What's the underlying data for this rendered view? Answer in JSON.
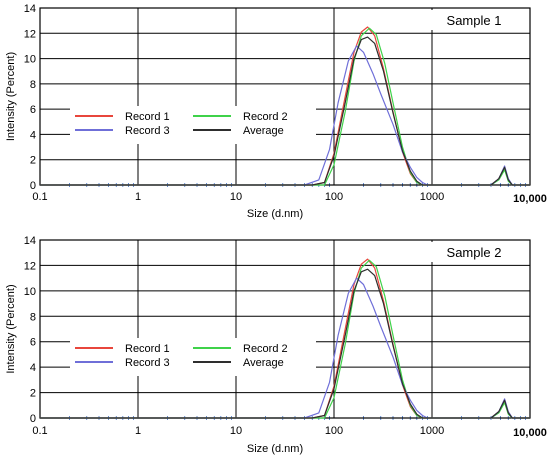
{
  "chart_data": [
    {
      "type": "line",
      "title": "Sample 1",
      "xlabel": "Size (d.nm)",
      "ylabel": "Intensity (Percent)",
      "xscale": "log",
      "xlim": [
        0.1,
        10000
      ],
      "ylim": [
        0,
        14
      ],
      "xticks": [
        0.1,
        1,
        10,
        100,
        1000,
        10000
      ],
      "xtick_labels": [
        "0.1",
        "1",
        "10",
        "100",
        "1000",
        "10,000"
      ],
      "yticks": [
        0,
        2,
        4,
        6,
        8,
        10,
        12,
        14
      ],
      "grid": true,
      "legend_position": "center-left",
      "series": [
        {
          "name": "Record 1",
          "color": "#e8463c",
          "x": [
            0.1,
            20,
            60,
            80,
            100,
            130,
            160,
            190,
            220,
            260,
            320,
            400,
            500,
            600,
            700,
            800,
            900,
            1000,
            4000,
            4800,
            5500,
            6000,
            6600,
            10000
          ],
          "y": [
            0,
            0,
            0,
            0.2,
            2.5,
            7.0,
            10.5,
            12.1,
            12.5,
            11.8,
            9.2,
            5.8,
            2.6,
            0.9,
            0.2,
            0,
            0,
            0,
            0,
            0.5,
            1.4,
            0.4,
            0,
            0
          ]
        },
        {
          "name": "Record 2",
          "color": "#3fd24a",
          "x": [
            0.1,
            20,
            60,
            80,
            100,
            130,
            160,
            190,
            230,
            270,
            330,
            400,
            500,
            600,
            700,
            800,
            900,
            1000,
            4000,
            4800,
            5500,
            6000,
            6600,
            10000
          ],
          "y": [
            0,
            0,
            0,
            0,
            1.6,
            5.8,
            9.8,
            11.8,
            12.4,
            11.9,
            9.6,
            6.5,
            3.0,
            1.0,
            0.2,
            0,
            0,
            0,
            0,
            0.4,
            1.2,
            0.3,
            0,
            0
          ]
        },
        {
          "name": "Record 3",
          "color": "#6f6fd8",
          "x": [
            0.1,
            20,
            50,
            70,
            90,
            110,
            140,
            170,
            200,
            250,
            300,
            400,
            500,
            600,
            700,
            800,
            900,
            1000,
            4000,
            4800,
            5500,
            6000,
            6600,
            10000
          ],
          "y": [
            0,
            0,
            0,
            0.4,
            2.8,
            6.5,
            9.8,
            11.0,
            10.5,
            8.8,
            7.2,
            4.8,
            2.6,
            1.4,
            0.6,
            0.2,
            0,
            0,
            0,
            0.5,
            1.5,
            0.5,
            0,
            0
          ]
        },
        {
          "name": "Average",
          "color": "#2e2e2e",
          "x": [
            0.1,
            20,
            60,
            80,
            100,
            130,
            160,
            190,
            220,
            260,
            320,
            400,
            500,
            600,
            700,
            800,
            900,
            1000,
            4000,
            4800,
            5500,
            6000,
            6600,
            10000
          ],
          "y": [
            0,
            0,
            0,
            0.2,
            2.3,
            6.5,
            10.0,
            11.5,
            11.7,
            11.2,
            9.0,
            5.7,
            2.7,
            1.1,
            0.3,
            0,
            0,
            0,
            0,
            0.5,
            1.4,
            0.4,
            0,
            0
          ]
        }
      ]
    },
    {
      "type": "line",
      "title": "Sample 2",
      "xlabel": "Size (d.nm)",
      "ylabel": "Intensity (Percent)",
      "xscale": "log",
      "xlim": [
        0.1,
        10000
      ],
      "ylim": [
        0,
        14
      ],
      "xticks": [
        0.1,
        1,
        10,
        100,
        1000,
        10000
      ],
      "xtick_labels": [
        "0.1",
        "1",
        "10",
        "100",
        "1000",
        "10,000"
      ],
      "yticks": [
        0,
        2,
        4,
        6,
        8,
        10,
        12,
        14
      ],
      "grid": true,
      "legend_position": "center-left",
      "series": [
        {
          "name": "Record 1",
          "color": "#e8463c",
          "x": [
            0.1,
            20,
            60,
            80,
            100,
            130,
            160,
            190,
            220,
            260,
            320,
            400,
            500,
            600,
            700,
            800,
            900,
            1000,
            4000,
            4800,
            5500,
            6000,
            6600,
            10000
          ],
          "y": [
            0,
            0,
            0,
            0.2,
            2.5,
            7.0,
            10.5,
            12.1,
            12.5,
            11.8,
            9.2,
            5.8,
            2.6,
            0.9,
            0.2,
            0,
            0,
            0,
            0,
            0.5,
            1.4,
            0.4,
            0,
            0
          ]
        },
        {
          "name": "Record 2",
          "color": "#3fd24a",
          "x": [
            0.1,
            20,
            60,
            80,
            100,
            130,
            160,
            190,
            230,
            270,
            330,
            400,
            500,
            600,
            700,
            800,
            900,
            1000,
            4000,
            4800,
            5500,
            6000,
            6600,
            10000
          ],
          "y": [
            0,
            0,
            0,
            0,
            1.6,
            5.8,
            9.8,
            11.8,
            12.4,
            11.9,
            9.6,
            6.5,
            3.0,
            1.0,
            0.2,
            0,
            0,
            0,
            0,
            0.4,
            1.2,
            0.3,
            0,
            0
          ]
        },
        {
          "name": "Record 3",
          "color": "#6f6fd8",
          "x": [
            0.1,
            20,
            50,
            70,
            90,
            110,
            140,
            170,
            200,
            250,
            300,
            400,
            500,
            600,
            700,
            800,
            900,
            1000,
            4000,
            4800,
            5500,
            6000,
            6600,
            10000
          ],
          "y": [
            0,
            0,
            0,
            0.4,
            2.8,
            6.5,
            9.8,
            11.0,
            10.5,
            8.8,
            7.2,
            4.8,
            2.6,
            1.4,
            0.6,
            0.2,
            0,
            0,
            0,
            0.5,
            1.5,
            0.5,
            0,
            0
          ]
        },
        {
          "name": "Average",
          "color": "#2e2e2e",
          "x": [
            0.1,
            20,
            60,
            80,
            100,
            130,
            160,
            190,
            220,
            260,
            320,
            400,
            500,
            600,
            700,
            800,
            900,
            1000,
            4000,
            4800,
            5500,
            6000,
            6600,
            10000
          ],
          "y": [
            0,
            0,
            0,
            0.2,
            2.3,
            6.5,
            10.0,
            11.5,
            11.7,
            11.2,
            9.0,
            5.7,
            2.7,
            1.1,
            0.3,
            0,
            0,
            0,
            0,
            0.5,
            1.4,
            0.4,
            0,
            0
          ]
        }
      ]
    }
  ]
}
